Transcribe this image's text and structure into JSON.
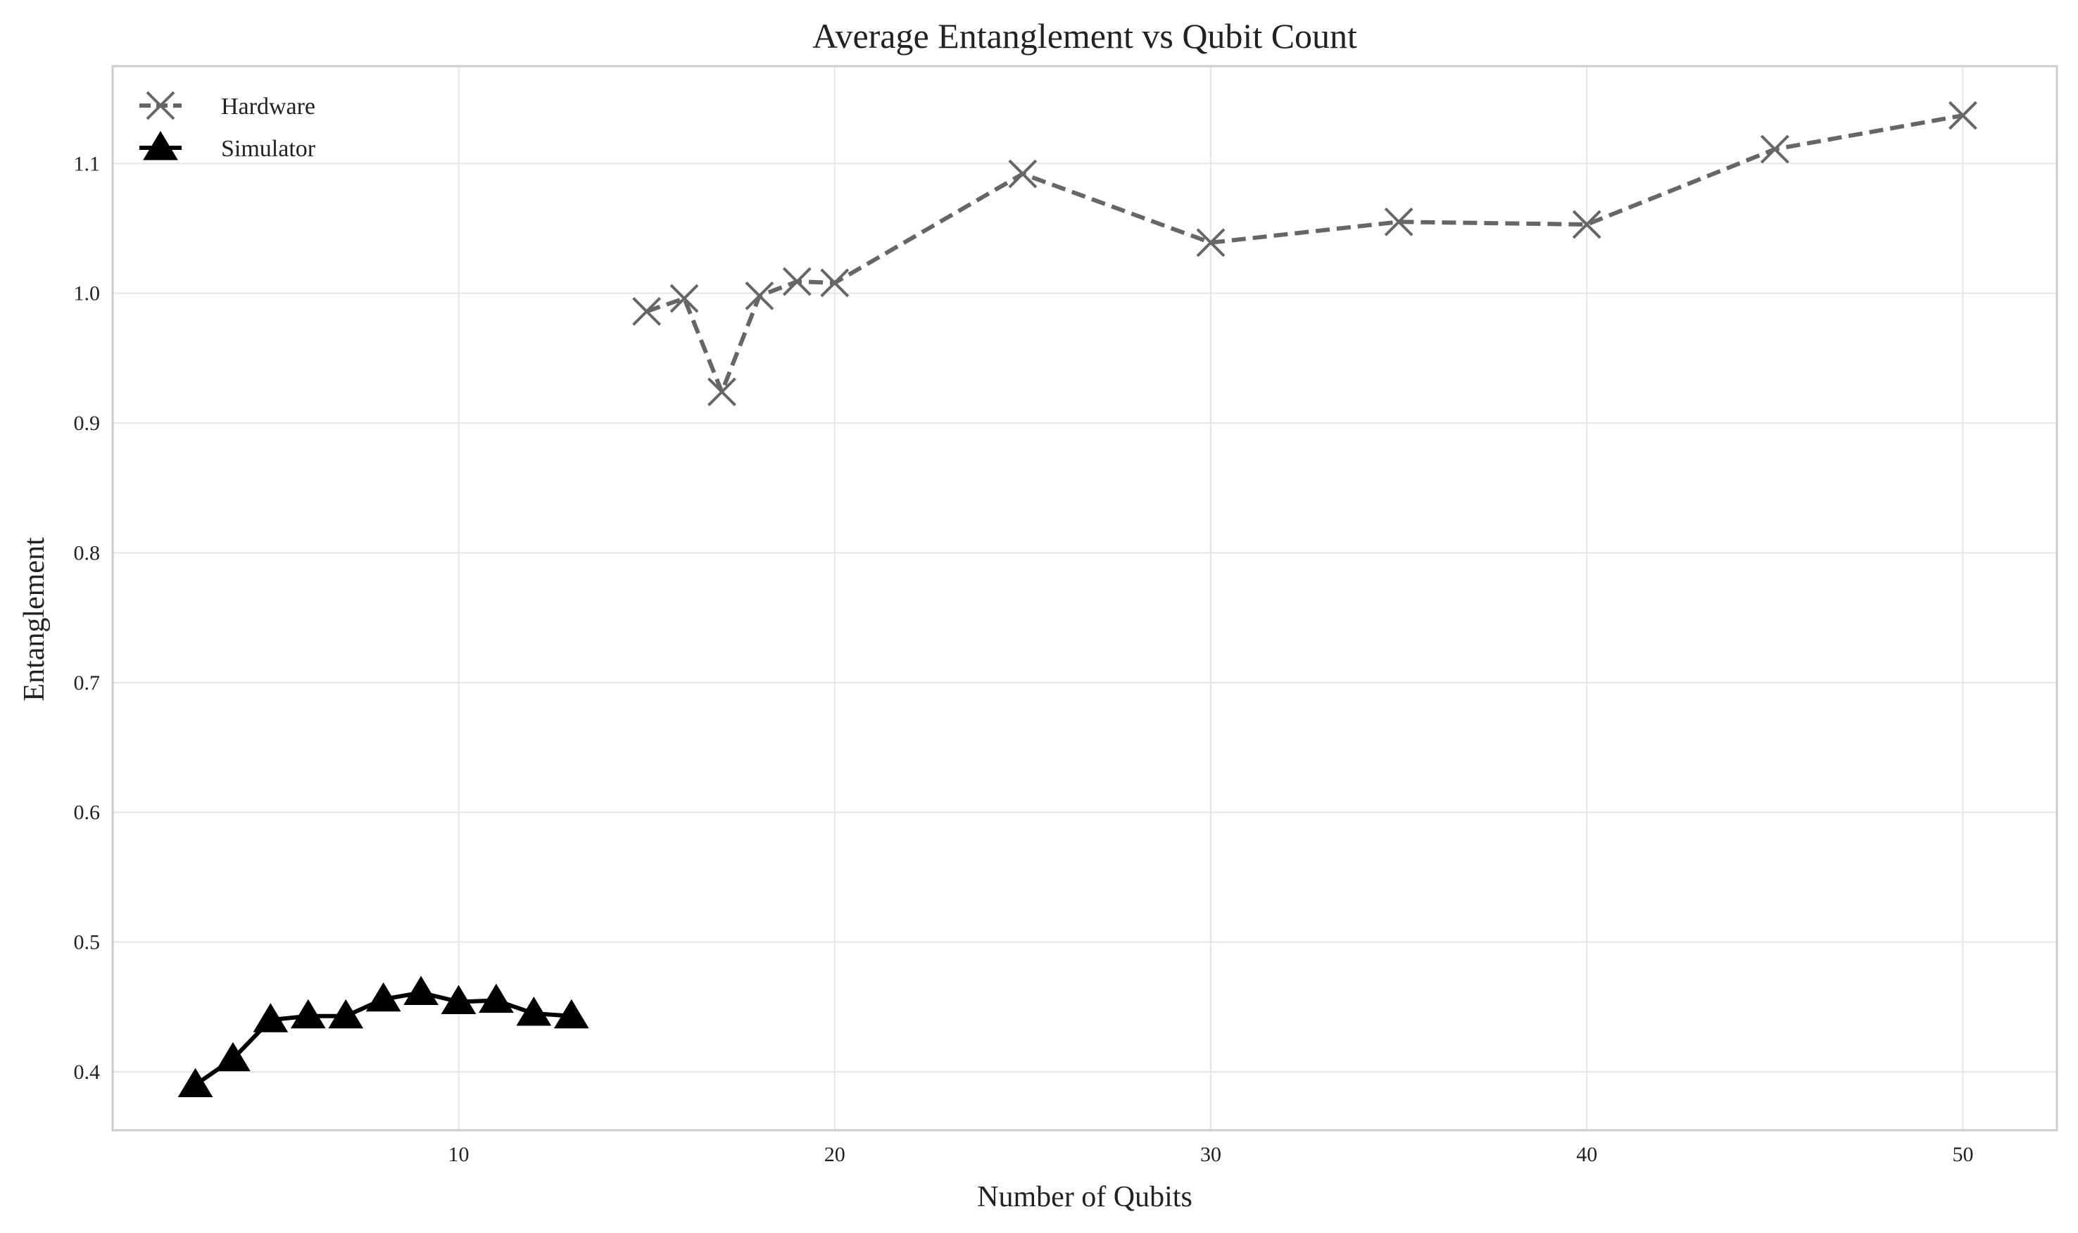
{
  "chart_data": {
    "type": "line",
    "title": "Average Entanglement vs Qubit Count",
    "xlabel": "Number of Qubits",
    "ylabel": "Entanglement",
    "xlim": [
      0.8,
      52.5
    ],
    "ylim": [
      0.355,
      1.175
    ],
    "xticks": [
      10,
      20,
      30,
      40,
      50
    ],
    "yticks": [
      0.4,
      0.5,
      0.6,
      0.7,
      0.8,
      0.9,
      1.0,
      1.1
    ],
    "grid": true,
    "legend_position": "top-left",
    "series": [
      {
        "name": "Hardware",
        "color": "#666666",
        "line_style": "dashed",
        "marker": "x",
        "x": [
          15,
          16,
          17,
          18,
          19,
          20,
          25,
          30,
          35,
          40,
          45,
          50
        ],
        "y": [
          0.986,
          0.996,
          0.924,
          0.998,
          1.009,
          1.008,
          1.092,
          1.039,
          1.055,
          1.053,
          1.111,
          1.137
        ]
      },
      {
        "name": "Simulator",
        "color": "#000000",
        "line_style": "solid",
        "marker": "triangle",
        "x": [
          3,
          4,
          5,
          6,
          7,
          8,
          9,
          10,
          11,
          12,
          13
        ],
        "y": [
          0.39,
          0.41,
          0.44,
          0.443,
          0.443,
          0.456,
          0.461,
          0.454,
          0.455,
          0.445,
          0.443
        ]
      }
    ]
  }
}
